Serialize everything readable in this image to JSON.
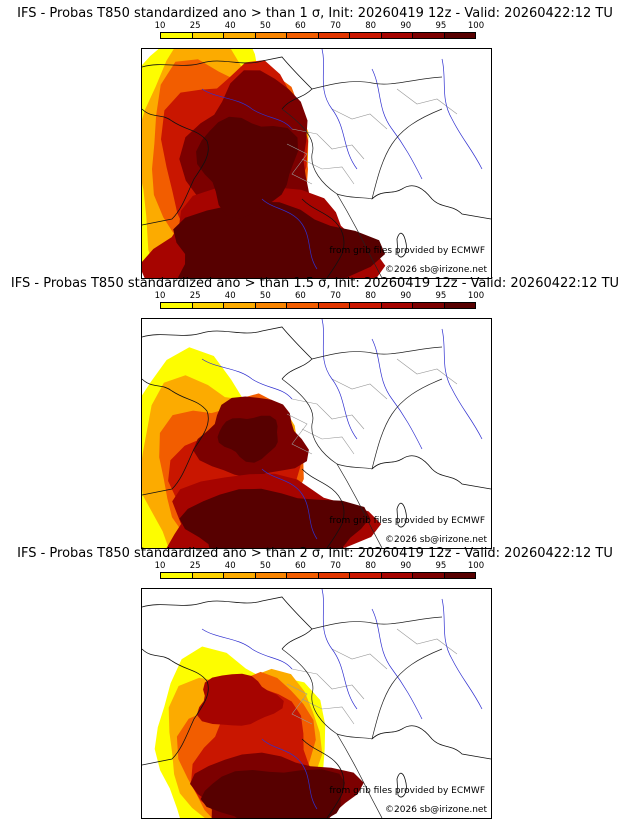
{
  "colorbar": {
    "ticks": [
      "10",
      "25",
      "40",
      "50",
      "60",
      "70",
      "80",
      "90",
      "95",
      "100"
    ],
    "colors": [
      "#fdfd00",
      "#fdd300",
      "#fcab00",
      "#f88400",
      "#f25d00",
      "#e23600",
      "#c91600",
      "#a60400",
      "#7c0000",
      "#570000"
    ]
  },
  "panels": [
    {
      "title": "IFS - Probas T850  standardized ano > than 1 σ, Init: 20260419 12z - Valid: 20260422:12 TU",
      "threshold_sigma": 1,
      "source_credit": "from grib files provided by ECMWF",
      "copyright": "©2026 sb@irizone.net"
    },
    {
      "title": "IFS - Probas T850  standardized ano > than 1.5 σ, Init: 20260419 12z - Valid: 20260422:12 TU",
      "threshold_sigma": 1.5,
      "source_credit": "from grib files provided by ECMWF",
      "copyright": "©2026 sb@irizone.net"
    },
    {
      "title": "IFS - Probas T850  standardized ano > than 2 σ, Init: 20260419 12z - Valid: 20260422:12 TU",
      "threshold_sigma": 2,
      "source_credit": "from grib files provided by ECMWF",
      "copyright": "©2026 sb@irizone.net"
    }
  ]
}
